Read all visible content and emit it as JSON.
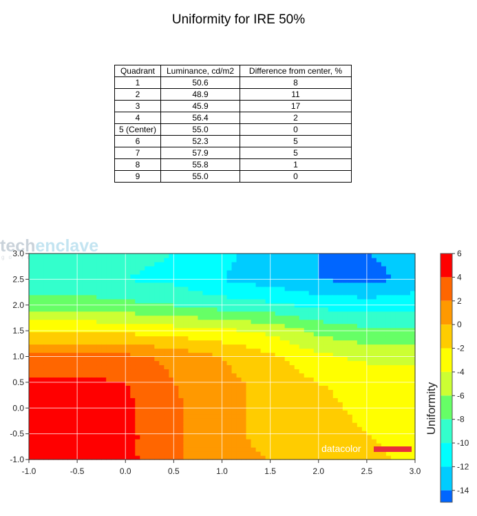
{
  "title": "Uniformity for IRE 50%",
  "table": {
    "headers": [
      "Quadrant",
      "Luminance, cd/m2",
      "Difference from center, %"
    ],
    "rows": [
      [
        "1",
        "50.6",
        "8"
      ],
      [
        "2",
        "48.9",
        "11"
      ],
      [
        "3",
        "45.9",
        "17"
      ],
      [
        "4",
        "56.4",
        "2"
      ],
      [
        "5 (Center)",
        "55.0",
        "0"
      ],
      [
        "6",
        "52.3",
        "5"
      ],
      [
        "7",
        "57.9",
        "5"
      ],
      [
        "8",
        "55.8",
        "1"
      ],
      [
        "9",
        "55.0",
        "0"
      ]
    ]
  },
  "watermark": {
    "part1": "tech",
    "part2": "enclave",
    "sub": "go for more share"
  },
  "brand": "datacolor",
  "chart_data": {
    "type": "heatmap",
    "title": "Uniformity for IRE 50%",
    "xlabel": "",
    "ylabel": "",
    "colorbar_label": "Uniformity",
    "xlim": [
      -1.0,
      3.0
    ],
    "ylim": [
      -1.0,
      3.0
    ],
    "x_ticks": [
      "-1.0",
      "-0.5",
      "0.0",
      "0.5",
      "1.0",
      "1.5",
      "2.0",
      "2.5",
      "3.0"
    ],
    "y_ticks": [
      "-1.0",
      "-0.5",
      "0.0",
      "0.5",
      "1.0",
      "1.5",
      "2.0",
      "2.5",
      "3.0"
    ],
    "colorbar_ticks": [
      "6",
      "4",
      "2",
      "0",
      "-2",
      "-4",
      "-6",
      "-8",
      "-10",
      "-12",
      "-14"
    ],
    "colorbar_range": [
      -15,
      6
    ],
    "grid": true,
    "x": [
      -1.0,
      -0.5,
      0.0,
      0.5,
      1.0,
      1.5,
      2.0,
      2.5,
      3.0
    ],
    "y": [
      -1.0,
      -0.5,
      0.0,
      0.5,
      1.0,
      1.5,
      2.0,
      2.5,
      3.0
    ],
    "z": [
      [
        4.5,
        4.5,
        4.5,
        2.5,
        0.5,
        0.0,
        -0.5,
        -1.5,
        -2.5
      ],
      [
        4.5,
        4.5,
        4.5,
        2.5,
        0.5,
        -0.5,
        -1.0,
        -2.0,
        -2.5
      ],
      [
        4.5,
        4.5,
        4.5,
        2.5,
        0.5,
        -0.5,
        -1.5,
        -2.5,
        -2.5
      ],
      [
        4.5,
        4.5,
        4.0,
        2.0,
        0.5,
        -0.5,
        -2.0,
        -2.5,
        -3.0
      ],
      [
        2.5,
        2.5,
        2.5,
        1.5,
        0.0,
        -1.5,
        -3.5,
        -4.5,
        -4.5
      ],
      [
        -2.0,
        -2.0,
        -2.5,
        -3.0,
        -3.5,
        -4.5,
        -6.5,
        -7.5,
        -7.5
      ],
      [
        -7.0,
        -7.0,
        -7.5,
        -8.0,
        -9.0,
        -9.5,
        -10.5,
        -11.0,
        -10.5
      ],
      [
        -9.5,
        -9.5,
        -10.0,
        -10.5,
        -12.0,
        -13.0,
        -14.0,
        -14.5,
        -13.5
      ],
      [
        -10.0,
        -9.5,
        -9.5,
        -10.0,
        -11.5,
        -13.0,
        -14.0,
        -14.0,
        -13.5
      ]
    ],
    "color_bands": [
      {
        "min": 4,
        "max": 6,
        "color": "#ff0000"
      },
      {
        "min": 2,
        "max": 4,
        "color": "#ff6600"
      },
      {
        "min": 0,
        "max": 2,
        "color": "#ff9900"
      },
      {
        "min": -2,
        "max": 0,
        "color": "#ffcc00"
      },
      {
        "min": -4,
        "max": -2,
        "color": "#ffff00"
      },
      {
        "min": -6,
        "max": -4,
        "color": "#ccff33"
      },
      {
        "min": -8,
        "max": -6,
        "color": "#66ff66"
      },
      {
        "min": -10,
        "max": -8,
        "color": "#33ffcc"
      },
      {
        "min": -12,
        "max": -10,
        "color": "#00ffff"
      },
      {
        "min": -14,
        "max": -12,
        "color": "#00ccff"
      },
      {
        "min": -16,
        "max": -14,
        "color": "#0066ff"
      }
    ]
  }
}
